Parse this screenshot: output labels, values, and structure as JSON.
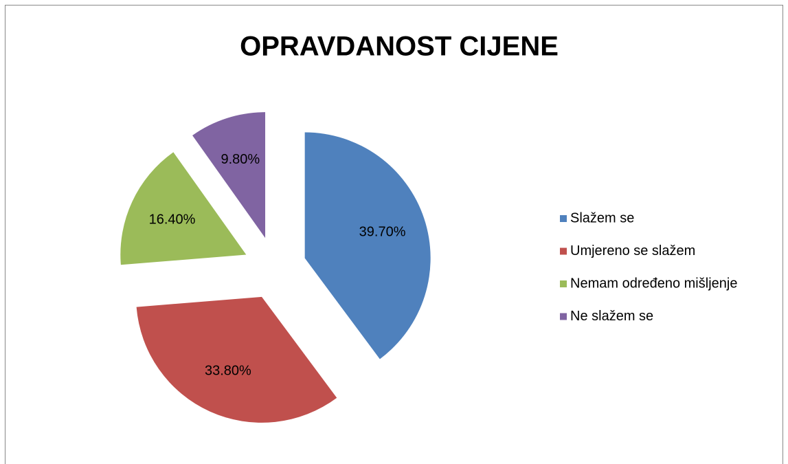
{
  "chart_data": {
    "type": "pie",
    "title": "OPRAVDANOST CIJENE",
    "categories": [
      "Slažem se",
      "Umjereno se slažem",
      "Nemam određeno mišljenje",
      "Ne slažem se"
    ],
    "values": [
      39.7,
      33.8,
      16.4,
      9.8
    ],
    "value_labels": [
      "39.70%",
      "33.80%",
      "16.40%",
      "9.80%"
    ],
    "colors": [
      "#4f81bd",
      "#c0504d",
      "#9bbb59",
      "#8064a2"
    ],
    "legend": "right",
    "exploded": true
  }
}
